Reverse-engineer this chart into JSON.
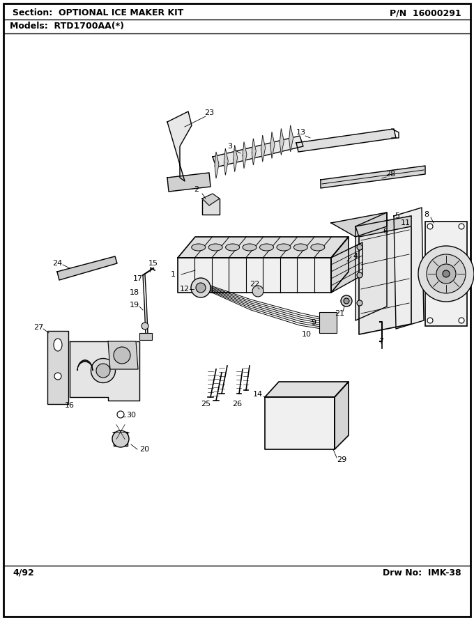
{
  "section_text": "Section:  OPTIONAL ICE MAKER KIT",
  "pn_text": "P/N  16000291",
  "models_text": "Models:  RTD1700AA(*)",
  "footer_left": "4/92",
  "footer_right": "Drw No:  IMK-38",
  "bg_color": "#ffffff"
}
